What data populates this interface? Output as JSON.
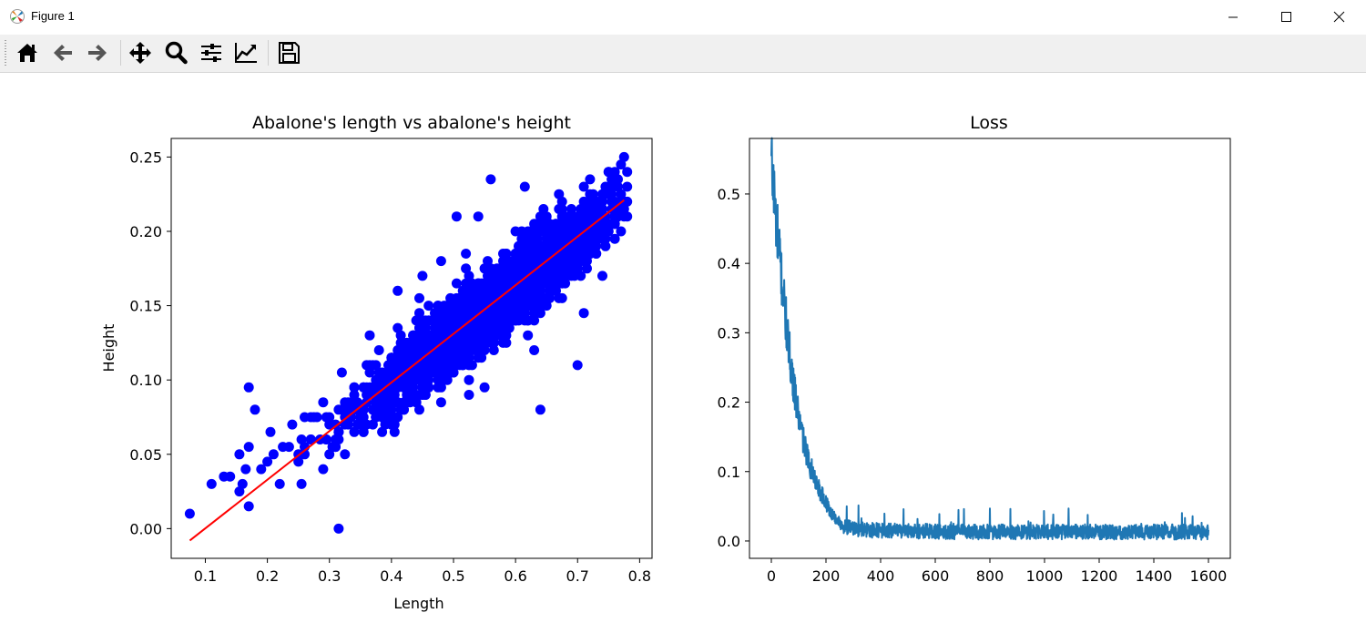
{
  "window": {
    "title": "Figure 1",
    "buttons": [
      "minimize",
      "maximize",
      "close"
    ]
  },
  "toolbar": {
    "tools": [
      {
        "name": "home-icon",
        "label": "Home"
      },
      {
        "name": "back-icon",
        "label": "Back"
      },
      {
        "name": "forward-icon",
        "label": "Forward"
      },
      {
        "name": "pan-icon",
        "label": "Pan"
      },
      {
        "name": "zoom-icon",
        "label": "Zoom"
      },
      {
        "name": "subplots-icon",
        "label": "Subplots"
      },
      {
        "name": "customize-icon",
        "label": "Customize"
      },
      {
        "name": "save-icon",
        "label": "Save"
      }
    ]
  },
  "chart_data": [
    {
      "type": "scatter",
      "title": "Abalone's length vs abalone's height",
      "xlabel": "Length",
      "ylabel": "Height",
      "xlim": [
        0.045,
        0.82
      ],
      "ylim": [
        -0.02,
        0.2625
      ],
      "xticks": [
        "0.1",
        "0.2",
        "0.3",
        "0.4",
        "0.5",
        "0.6",
        "0.7",
        "0.8"
      ],
      "yticks": [
        "0.00",
        "0.05",
        "0.10",
        "0.15",
        "0.20",
        "0.25"
      ],
      "colors": {
        "points": "#0000ff",
        "fit_line": "#ff0000"
      },
      "points": [
        [
          0.075,
          0.01
        ],
        [
          0.11,
          0.03
        ],
        [
          0.13,
          0.035
        ],
        [
          0.14,
          0.035
        ],
        [
          0.155,
          0.025
        ],
        [
          0.155,
          0.05
        ],
        [
          0.16,
          0.03
        ],
        [
          0.165,
          0.04
        ],
        [
          0.17,
          0.015
        ],
        [
          0.17,
          0.055
        ],
        [
          0.17,
          0.095
        ],
        [
          0.18,
          0.08
        ],
        [
          0.19,
          0.04
        ],
        [
          0.2,
          0.045
        ],
        [
          0.205,
          0.065
        ],
        [
          0.21,
          0.05
        ],
        [
          0.22,
          0.03
        ],
        [
          0.225,
          0.055
        ],
        [
          0.235,
          0.055
        ],
        [
          0.24,
          0.07
        ],
        [
          0.25,
          0.045
        ],
        [
          0.255,
          0.06
        ],
        [
          0.26,
          0.075
        ],
        [
          0.27,
          0.06
        ],
        [
          0.28,
          0.075
        ],
        [
          0.29,
          0.085
        ],
        [
          0.3,
          0.05
        ],
        [
          0.3,
          0.07
        ],
        [
          0.31,
          0.055
        ],
        [
          0.315,
          0.0
        ],
        [
          0.32,
          0.105
        ],
        [
          0.33,
          0.08
        ],
        [
          0.34,
          0.095
        ],
        [
          0.35,
          0.075
        ],
        [
          0.36,
          0.11
        ],
        [
          0.365,
          0.13
        ],
        [
          0.375,
          0.09
        ],
        [
          0.39,
          0.1
        ],
        [
          0.4,
          0.115
        ],
        [
          0.405,
          0.065
        ],
        [
          0.41,
          0.16
        ],
        [
          0.425,
          0.085
        ],
        [
          0.44,
          0.14
        ],
        [
          0.45,
          0.17
        ],
        [
          0.455,
          0.09
        ],
        [
          0.46,
          0.15
        ],
        [
          0.48,
          0.18
        ],
        [
          0.485,
          0.1
        ],
        [
          0.505,
          0.21
        ],
        [
          0.51,
          0.135
        ],
        [
          0.52,
          0.185
        ],
        [
          0.525,
          0.12
        ],
        [
          0.54,
          0.21
        ],
        [
          0.55,
          0.095
        ],
        [
          0.56,
          0.235
        ],
        [
          0.57,
          0.145
        ],
        [
          0.58,
          0.125
        ],
        [
          0.59,
          0.175
        ],
        [
          0.61,
          0.2
        ],
        [
          0.615,
          0.23
        ],
        [
          0.63,
          0.12
        ],
        [
          0.64,
          0.08
        ],
        [
          0.65,
          0.2
        ],
        [
          0.66,
          0.165
        ],
        [
          0.67,
          0.225
        ],
        [
          0.7,
          0.11
        ],
        [
          0.71,
          0.145
        ],
        [
          0.72,
          0.235
        ],
        [
          0.74,
          0.17
        ],
        [
          0.75,
          0.24
        ],
        [
          0.76,
          0.195
        ],
        [
          0.775,
          0.25
        ],
        [
          0.78,
          0.21
        ]
      ],
      "fit_line": {
        "x": [
          0.075,
          0.775
        ],
        "y": [
          -0.008,
          0.221
        ]
      },
      "note_dense_cloud": "Roughly 3000 additional points clustered around the fit line between length 0.25 and 0.78"
    },
    {
      "type": "line",
      "title": "Loss",
      "xlabel": "",
      "ylabel": "",
      "xlim": [
        -80,
        1680
      ],
      "ylim": [
        -0.025,
        0.58
      ],
      "xticks": [
        "0",
        "200",
        "400",
        "600",
        "800",
        "1000",
        "1200",
        "1400",
        "1600"
      ],
      "yticks": [
        "0.0",
        "0.1",
        "0.2",
        "0.3",
        "0.4",
        "0.5"
      ],
      "colors": {
        "line": "#1f77b4"
      },
      "series": [
        {
          "x": [
            0,
            10,
            20,
            30,
            40,
            50,
            60,
            70,
            80,
            90,
            100,
            120,
            140,
            160,
            180,
            200,
            220,
            240,
            260,
            280,
            300,
            350,
            400,
            500,
            600,
            700,
            800,
            900,
            1000,
            1100,
            1200,
            1300,
            1400,
            1500,
            1600
          ],
          "values": [
            0.55,
            0.5,
            0.45,
            0.41,
            0.37,
            0.33,
            0.29,
            0.26,
            0.23,
            0.2,
            0.18,
            0.14,
            0.11,
            0.09,
            0.07,
            0.055,
            0.04,
            0.03,
            0.022,
            0.02,
            0.018,
            0.016,
            0.015,
            0.014,
            0.014,
            0.013,
            0.013,
            0.013,
            0.013,
            0.013,
            0.013,
            0.013,
            0.013,
            0.013,
            0.012
          ]
        }
      ]
    }
  ]
}
